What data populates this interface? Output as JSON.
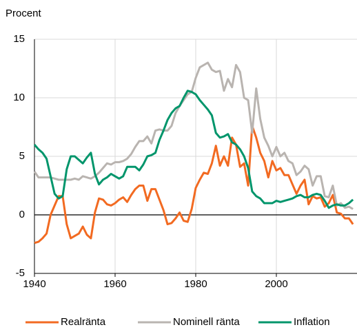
{
  "chart_data": {
    "type": "line",
    "ylabel": "Procent",
    "x": [
      1940,
      1941,
      1942,
      1943,
      1944,
      1945,
      1946,
      1947,
      1948,
      1949,
      1950,
      1951,
      1952,
      1953,
      1954,
      1955,
      1956,
      1957,
      1958,
      1959,
      1960,
      1961,
      1962,
      1963,
      1964,
      1965,
      1966,
      1967,
      1968,
      1969,
      1970,
      1971,
      1972,
      1973,
      1974,
      1975,
      1976,
      1977,
      1978,
      1979,
      1980,
      1981,
      1982,
      1983,
      1984,
      1985,
      1986,
      1987,
      1988,
      1989,
      1990,
      1991,
      1992,
      1993,
      1994,
      1995,
      1996,
      1997,
      1998,
      1999,
      2000,
      2001,
      2002,
      2003,
      2004,
      2005,
      2006,
      2007,
      2008,
      2009,
      2010,
      2011,
      2012,
      2013,
      2014,
      2015,
      2016,
      2017,
      2018,
      2019
    ],
    "series": [
      {
        "name": "Realränta",
        "color": "#f26a21",
        "values": [
          -2.4,
          -2.3,
          -2.0,
          -1.6,
          0,
          0.8,
          1.6,
          1.6,
          -0.8,
          -2.0,
          -1.8,
          -1.6,
          -1.0,
          -1.7,
          -2.0,
          0.2,
          1.4,
          1.3,
          0.9,
          0.8,
          1.0,
          1.3,
          1.5,
          1.1,
          1.7,
          2.2,
          2.5,
          2.5,
          1.2,
          2.2,
          2.2,
          1.3,
          0.4,
          -0.8,
          -0.7,
          -0.3,
          0.2,
          -0.5,
          -0.6,
          0.5,
          2.3,
          3.0,
          3.6,
          3.5,
          4.4,
          5.9,
          4.2,
          5.0,
          4.2,
          6.6,
          6.0,
          4.1,
          4.4,
          2.5,
          7.6,
          6.6,
          5.3,
          4.6,
          3.2,
          4.6,
          3.8,
          4.0,
          3.4,
          3.4,
          2.6,
          1.8,
          2.5,
          3.0,
          0.9,
          1.6,
          1.4,
          1.5,
          0.7,
          1.0,
          1.7,
          0.2,
          0.1,
          -0.3,
          -0.3,
          -0.8
        ]
      },
      {
        "name": "Nominell ränta",
        "color": "#b9b4b0",
        "values": [
          3.7,
          3.2,
          3.2,
          3.2,
          3.2,
          3.1,
          3.0,
          3.0,
          3.0,
          3.0,
          3.1,
          3.0,
          3.3,
          3.2,
          3.1,
          3.3,
          3.6,
          4.0,
          4.4,
          4.3,
          4.5,
          4.5,
          4.6,
          4.8,
          5.2,
          5.8,
          6.3,
          6.3,
          6.7,
          6.1,
          7.2,
          7.3,
          7.2,
          7.2,
          7.6,
          8.7,
          9.3,
          9.8,
          10.3,
          10.5,
          11.7,
          12.6,
          12.8,
          13.0,
          12.4,
          12.2,
          12.3,
          10.6,
          11.6,
          10.9,
          12.8,
          12.2,
          10.0,
          9.8,
          7.0,
          10.8,
          8.2,
          6.6,
          5.9,
          5.0,
          5.8,
          5.0,
          5.3,
          4.6,
          4.4,
          3.4,
          3.7,
          4.2,
          3.9,
          2.5,
          3.3,
          3.3,
          1.6,
          1.5,
          2.5,
          0.8,
          1.0,
          0.6,
          0.7,
          0.5
        ]
      },
      {
        "name": "Inflation",
        "color": "#00956b",
        "values": [
          6.0,
          5.6,
          5.3,
          4.8,
          3.3,
          1.8,
          1.4,
          1.6,
          3.9,
          5.0,
          5.0,
          4.7,
          4.4,
          4.9,
          5.3,
          3.5,
          2.6,
          3.0,
          3.2,
          3.5,
          3.3,
          3.1,
          3.3,
          4.1,
          4.1,
          4.1,
          3.8,
          4.3,
          5.0,
          5.1,
          5.3,
          6.4,
          7.2,
          8.1,
          8.7,
          9.1,
          9.3,
          10.0,
          10.6,
          10.5,
          10.3,
          9.8,
          9.4,
          9.0,
          8.5,
          7.0,
          6.6,
          6.7,
          6.9,
          6.2,
          6.0,
          5.6,
          5.0,
          4.0,
          2.0,
          1.6,
          1.4,
          1.0,
          1.0,
          1.0,
          1.2,
          1.1,
          1.2,
          1.3,
          1.4,
          1.6,
          1.7,
          1.5,
          1.5,
          1.7,
          1.8,
          1.7,
          1.2,
          0.6,
          0.8,
          0.9,
          0.8,
          0.8,
          1.0,
          1.3
        ]
      }
    ],
    "xlim": [
      1940,
      2020
    ],
    "xticks": [
      1940,
      1960,
      1980,
      2000
    ],
    "ylim": [
      -5,
      15
    ],
    "yticks": [
      -5,
      0,
      5,
      10,
      15
    ],
    "grid": true,
    "legend": "bottom"
  }
}
